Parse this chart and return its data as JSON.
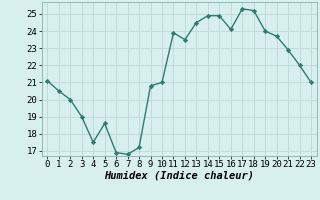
{
  "x": [
    0,
    1,
    2,
    3,
    4,
    5,
    6,
    7,
    8,
    9,
    10,
    11,
    12,
    13,
    14,
    15,
    16,
    17,
    18,
    19,
    20,
    21,
    22,
    23
  ],
  "y": [
    21.1,
    20.5,
    20.0,
    19.0,
    17.5,
    18.6,
    16.9,
    16.8,
    17.2,
    20.8,
    21.0,
    23.9,
    23.5,
    24.5,
    24.9,
    24.9,
    24.1,
    25.3,
    25.2,
    24.0,
    23.7,
    22.9,
    22.0,
    21.0
  ],
  "line_color": "#2d7d6e",
  "marker": "D",
  "marker_size": 2.2,
  "bg_color": "#d8f0ed",
  "grid_color": "#c0d8d4",
  "xlabel": "Humidex (Indice chaleur)",
  "xlim": [
    -0.5,
    23.5
  ],
  "ylim": [
    16.7,
    25.7
  ],
  "yticks": [
    17,
    18,
    19,
    20,
    21,
    22,
    23,
    24,
    25
  ],
  "xticks": [
    0,
    1,
    2,
    3,
    4,
    5,
    6,
    7,
    8,
    9,
    10,
    11,
    12,
    13,
    14,
    15,
    16,
    17,
    18,
    19,
    20,
    21,
    22,
    23
  ],
  "tick_fontsize": 6.5,
  "xlabel_fontsize": 7.5,
  "line_width": 1.0
}
